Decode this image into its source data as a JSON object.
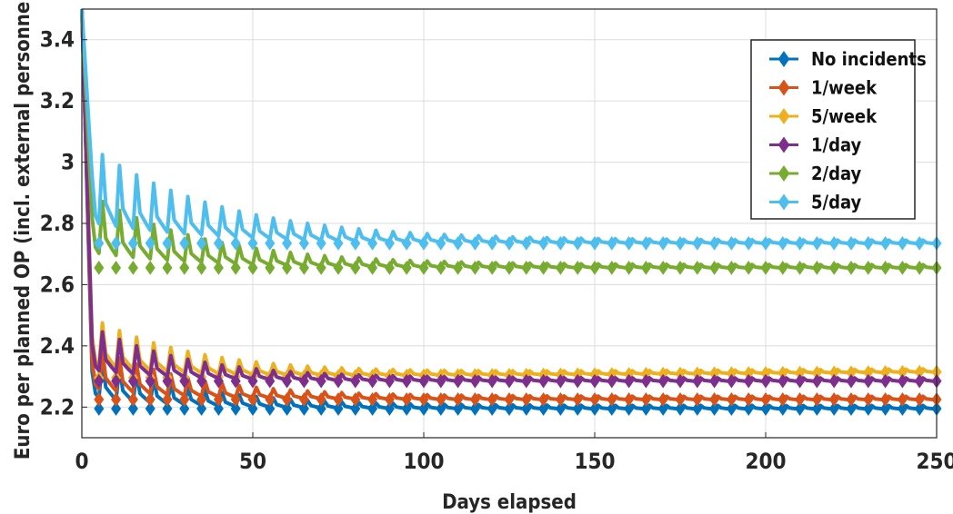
{
  "chart_data": {
    "type": "line",
    "title": "",
    "xlabel": "Days elapsed",
    "ylabel": "Euro per planned OP (incl. external personnel)",
    "xlim": [
      0,
      250
    ],
    "ylim": [
      2.1,
      3.5
    ],
    "xticks": [
      0,
      50,
      100,
      150,
      200,
      250
    ],
    "yticks": [
      2.2,
      2.4,
      2.6,
      2.8,
      3,
      3.2,
      3.4
    ],
    "ytick_labels": [
      "2.2",
      "2.4",
      "2.6",
      "2.8",
      "3",
      "3.2",
      "3.4"
    ],
    "grid": true,
    "legend_position": "top-right",
    "marker": "diamond",
    "period_days": 5,
    "series": [
      {
        "name": "No incidents",
        "color": "#0072BD",
        "start": 3.5,
        "low": 2.19,
        "high": 2.19,
        "peak_amp": 0.18,
        "decay": 0.12
      },
      {
        "name": "1/week",
        "color": "#D95319",
        "start": 3.5,
        "low": 2.22,
        "high": 2.22,
        "peak_amp": 0.18,
        "decay": 0.12
      },
      {
        "name": "5/week",
        "color": "#EDB120",
        "start": 3.5,
        "low": 2.29,
        "high": 2.31,
        "peak_amp": 0.2,
        "decay": 0.11
      },
      {
        "name": "1/day",
        "color": "#7E2F8E",
        "start": 3.5,
        "low": 2.28,
        "high": 2.28,
        "peak_amp": 0.18,
        "decay": 0.12
      },
      {
        "name": "2/day",
        "color": "#77AC30",
        "start": 3.5,
        "low": 2.65,
        "high": 2.65,
        "peak_amp": 0.24,
        "decay": 0.1
      },
      {
        "name": "5/day",
        "color": "#4DBEEE",
        "start": 3.5,
        "low": 2.73,
        "high": 2.73,
        "peak_amp": 0.32,
        "decay": 0.09
      }
    ]
  }
}
